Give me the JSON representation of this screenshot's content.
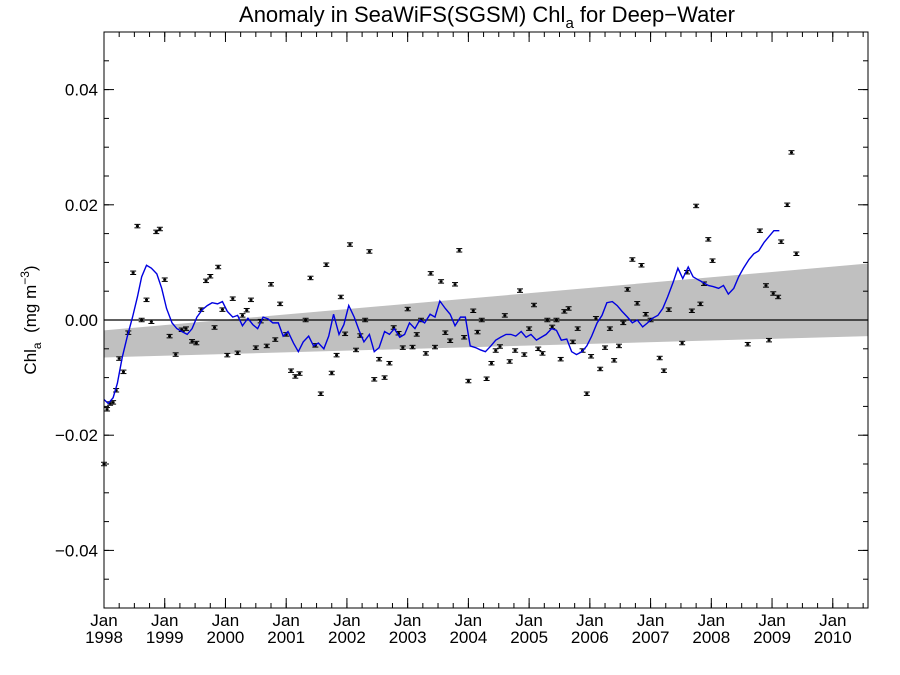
{
  "chart_data": {
    "type": "scatter",
    "title": {
      "main": "Anomaly in SeaWiFS(SGSM) Chl",
      "sub": "a",
      "rest": " for Deep−Water"
    },
    "ylabel": {
      "main": "Chl",
      "sub": "a",
      "unit_open": "  (mg m",
      "unit_exp": "−3",
      "unit_close": ")"
    },
    "x_range": [
      1998.0,
      2010.58
    ],
    "ylim": [
      -0.05,
      0.05
    ],
    "y_ticks": [
      {
        "value": 0.04,
        "label": "0.04"
      },
      {
        "value": 0.02,
        "label": "0.02"
      },
      {
        "value": 0.0,
        "label": "0.00"
      },
      {
        "value": -0.02,
        "label": "−0.02"
      },
      {
        "value": -0.04,
        "label": "−0.04"
      }
    ],
    "x_ticks": [
      {
        "value": 1998,
        "month": "Jan",
        "year": "1998"
      },
      {
        "value": 1999,
        "month": "Jan",
        "year": "1999"
      },
      {
        "value": 2000,
        "month": "Jan",
        "year": "2000"
      },
      {
        "value": 2001,
        "month": "Jan",
        "year": "2001"
      },
      {
        "value": 2002,
        "month": "Jan",
        "year": "2002"
      },
      {
        "value": 2003,
        "month": "Jan",
        "year": "2003"
      },
      {
        "value": 2004,
        "month": "Jan",
        "year": "2004"
      },
      {
        "value": 2005,
        "month": "Jan",
        "year": "2005"
      },
      {
        "value": 2006,
        "month": "Jan",
        "year": "2006"
      },
      {
        "value": 2007,
        "month": "Jan",
        "year": "2007"
      },
      {
        "value": 2008,
        "month": "Jan",
        "year": "2008"
      },
      {
        "value": 2009,
        "month": "Jan",
        "year": "2009"
      },
      {
        "value": 2010,
        "month": "Jan",
        "year": "2010"
      }
    ],
    "monthly_anomaly": {
      "error_half": 0.0003,
      "points": [
        [
          1998.0,
          -0.025
        ],
        [
          1998.05,
          -0.0155
        ],
        [
          1998.1,
          -0.0145
        ],
        [
          1998.15,
          -0.0143
        ],
        [
          1998.2,
          -0.0122
        ],
        [
          1998.25,
          -0.0067
        ],
        [
          1998.32,
          -0.009
        ],
        [
          1998.4,
          -0.0022
        ],
        [
          1998.48,
          0.0082
        ],
        [
          1998.55,
          0.0163
        ],
        [
          1998.62,
          0.0
        ],
        [
          1998.7,
          0.0035
        ],
        [
          1998.78,
          -0.0003
        ],
        [
          1998.86,
          0.0153
        ],
        [
          1998.92,
          0.0158
        ],
        [
          1999.0,
          0.007
        ],
        [
          1999.08,
          -0.0028
        ],
        [
          1999.18,
          -0.006
        ],
        [
          1999.28,
          -0.0017
        ],
        [
          1999.35,
          -0.0015
        ],
        [
          1999.45,
          -0.0037
        ],
        [
          1999.52,
          -0.004
        ],
        [
          1999.6,
          0.0018
        ],
        [
          1999.68,
          0.0068
        ],
        [
          1999.75,
          0.0076
        ],
        [
          1999.82,
          -0.0013
        ],
        [
          1999.88,
          0.0092
        ],
        [
          1999.95,
          0.0018
        ],
        [
          2000.03,
          -0.0061
        ],
        [
          2000.12,
          0.0037
        ],
        [
          2000.2,
          -0.0057
        ],
        [
          2000.28,
          0.0008
        ],
        [
          2000.35,
          0.0017
        ],
        [
          2000.42,
          0.0035
        ],
        [
          2000.5,
          -0.0048
        ],
        [
          2000.58,
          -0.0002
        ],
        [
          2000.68,
          -0.0045
        ],
        [
          2000.75,
          0.0062
        ],
        [
          2000.82,
          -0.0034
        ],
        [
          2000.9,
          0.0028
        ],
        [
          2001.0,
          -0.0025
        ],
        [
          2001.08,
          -0.0088
        ],
        [
          2001.15,
          -0.0098
        ],
        [
          2001.22,
          -0.0093
        ],
        [
          2001.32,
          0.0
        ],
        [
          2001.4,
          0.0073
        ],
        [
          2001.48,
          -0.0044
        ],
        [
          2001.57,
          -0.0128
        ],
        [
          2001.66,
          0.0096
        ],
        [
          2001.75,
          -0.0092
        ],
        [
          2001.83,
          -0.0061
        ],
        [
          2001.9,
          0.004
        ],
        [
          2001.97,
          -0.0024
        ],
        [
          2002.05,
          0.0131
        ],
        [
          2002.15,
          -0.0052
        ],
        [
          2002.22,
          -0.0027
        ],
        [
          2002.3,
          0.0
        ],
        [
          2002.37,
          0.0119
        ],
        [
          2002.45,
          -0.0103
        ],
        [
          2002.53,
          -0.0068
        ],
        [
          2002.62,
          -0.01
        ],
        [
          2002.7,
          -0.0075
        ],
        [
          2002.77,
          -0.0013
        ],
        [
          2002.85,
          -0.0023
        ],
        [
          2002.92,
          -0.0048
        ],
        [
          2003.0,
          0.0019
        ],
        [
          2003.08,
          -0.0047
        ],
        [
          2003.15,
          -0.0025
        ],
        [
          2003.22,
          0.0
        ],
        [
          2003.3,
          -0.0058
        ],
        [
          2003.38,
          0.0081
        ],
        [
          2003.45,
          -0.0047
        ],
        [
          2003.55,
          0.0067
        ],
        [
          2003.62,
          -0.0022
        ],
        [
          2003.7,
          -0.0036
        ],
        [
          2003.78,
          0.0062
        ],
        [
          2003.85,
          0.0121
        ],
        [
          2003.93,
          -0.003
        ],
        [
          2004.0,
          -0.0106
        ],
        [
          2004.08,
          0.0016
        ],
        [
          2004.15,
          -0.0021
        ],
        [
          2004.22,
          0.0
        ],
        [
          2004.3,
          -0.0102
        ],
        [
          2004.38,
          -0.0075
        ],
        [
          2004.45,
          -0.0053
        ],
        [
          2004.52,
          -0.0046
        ],
        [
          2004.6,
          0.0008
        ],
        [
          2004.68,
          -0.0072
        ],
        [
          2004.77,
          -0.0053
        ],
        [
          2004.85,
          0.0051
        ],
        [
          2004.92,
          -0.006
        ],
        [
          2005.0,
          -0.0015
        ],
        [
          2005.08,
          0.0026
        ],
        [
          2005.15,
          -0.005
        ],
        [
          2005.22,
          -0.0058
        ],
        [
          2005.3,
          0.0
        ],
        [
          2005.38,
          -0.0012
        ],
        [
          2005.45,
          0.0
        ],
        [
          2005.52,
          -0.0068
        ],
        [
          2005.58,
          0.0015
        ],
        [
          2005.65,
          0.002
        ],
        [
          2005.72,
          -0.0038
        ],
        [
          2005.8,
          -0.0015
        ],
        [
          2005.88,
          -0.0053
        ],
        [
          2005.95,
          -0.0128
        ],
        [
          2006.02,
          -0.0063
        ],
        [
          2006.1,
          0.0003
        ],
        [
          2006.17,
          -0.0085
        ],
        [
          2006.25,
          -0.0048
        ],
        [
          2006.33,
          -0.0015
        ],
        [
          2006.4,
          -0.007
        ],
        [
          2006.48,
          -0.0045
        ],
        [
          2006.55,
          -0.0005
        ],
        [
          2006.62,
          0.0053
        ],
        [
          2006.7,
          0.0105
        ],
        [
          2006.78,
          0.0029
        ],
        [
          2006.85,
          0.0095
        ],
        [
          2006.92,
          0.001
        ],
        [
          2007.0,
          0.0
        ],
        [
          2007.15,
          -0.0066
        ],
        [
          2007.22,
          -0.0088
        ],
        [
          2007.3,
          0.0018
        ],
        [
          2007.52,
          -0.004
        ],
        [
          2007.6,
          0.0083
        ],
        [
          2007.68,
          0.0016
        ],
        [
          2007.75,
          0.0198
        ],
        [
          2007.82,
          0.0028
        ],
        [
          2007.88,
          0.0063
        ],
        [
          2007.95,
          0.014
        ],
        [
          2008.02,
          0.0103
        ],
        [
          2008.6,
          -0.0042
        ],
        [
          2008.8,
          0.0155
        ],
        [
          2008.9,
          0.006
        ],
        [
          2008.95,
          -0.0035
        ],
        [
          2009.02,
          0.0046
        ],
        [
          2009.1,
          0.004
        ],
        [
          2009.15,
          0.0136
        ],
        [
          2009.25,
          0.02
        ],
        [
          2009.32,
          0.0291
        ],
        [
          2009.4,
          0.0115
        ]
      ]
    },
    "smoothed_series": {
      "color": "#0000e0",
      "points": [
        [
          1998.0,
          -0.0138
        ],
        [
          1998.07,
          -0.0145
        ],
        [
          1998.15,
          -0.0135
        ],
        [
          1998.22,
          -0.011
        ],
        [
          1998.3,
          -0.0065
        ],
        [
          1998.38,
          -0.003
        ],
        [
          1998.47,
          0.0005
        ],
        [
          1998.55,
          0.004
        ],
        [
          1998.62,
          0.0075
        ],
        [
          1998.7,
          0.0095
        ],
        [
          1998.78,
          0.009
        ],
        [
          1998.87,
          0.008
        ],
        [
          1998.95,
          0.0055
        ],
        [
          1999.03,
          0.002
        ],
        [
          1999.12,
          -0.0005
        ],
        [
          1999.2,
          -0.0015
        ],
        [
          1999.28,
          -0.002
        ],
        [
          1999.37,
          -0.0025
        ],
        [
          1999.45,
          -0.0015
        ],
        [
          1999.53,
          0.0005
        ],
        [
          1999.62,
          0.0018
        ],
        [
          1999.7,
          0.0025
        ],
        [
          1999.78,
          0.003
        ],
        [
          1999.87,
          0.0028
        ],
        [
          1999.95,
          0.0032
        ],
        [
          2000.03,
          0.0015
        ],
        [
          2000.12,
          0.0005
        ],
        [
          2000.2,
          0.0008
        ],
        [
          2000.28,
          -0.001
        ],
        [
          2000.37,
          0.0003
        ],
        [
          2000.45,
          -0.0008
        ],
        [
          2000.53,
          -0.0015
        ],
        [
          2000.62,
          0.0005
        ],
        [
          2000.7,
          0.0002
        ],
        [
          2000.78,
          -0.0005
        ],
        [
          2000.87,
          -0.0005
        ],
        [
          2000.95,
          -0.0028
        ],
        [
          2001.03,
          -0.002
        ],
        [
          2001.12,
          -0.004
        ],
        [
          2001.2,
          -0.0055
        ],
        [
          2001.28,
          -0.0038
        ],
        [
          2001.37,
          -0.0028
        ],
        [
          2001.45,
          -0.0045
        ],
        [
          2001.53,
          -0.004
        ],
        [
          2001.62,
          -0.005
        ],
        [
          2001.7,
          -0.0028
        ],
        [
          2001.78,
          0.001
        ],
        [
          2001.87,
          -0.0025
        ],
        [
          2001.95,
          -0.0008
        ],
        [
          2002.03,
          0.0025
        ],
        [
          2002.12,
          0.0005
        ],
        [
          2002.2,
          -0.0018
        ],
        [
          2002.28,
          -0.0038
        ],
        [
          2002.37,
          -0.0025
        ],
        [
          2002.45,
          -0.0055
        ],
        [
          2002.53,
          -0.0048
        ],
        [
          2002.62,
          -0.002
        ],
        [
          2002.7,
          -0.0025
        ],
        [
          2002.78,
          -0.0015
        ],
        [
          2002.87,
          -0.003
        ],
        [
          2002.95,
          -0.0025
        ],
        [
          2003.03,
          -0.0005
        ],
        [
          2003.12,
          -0.0015
        ],
        [
          2003.2,
          0.0
        ],
        [
          2003.28,
          -0.0005
        ],
        [
          2003.37,
          0.001
        ],
        [
          2003.45,
          0.0005
        ],
        [
          2003.53,
          0.0033
        ],
        [
          2003.62,
          0.002
        ],
        [
          2003.7,
          0.001
        ],
        [
          2003.78,
          -0.001
        ],
        [
          2003.87,
          0.0005
        ],
        [
          2003.95,
          0.0005
        ],
        [
          2004.03,
          -0.0045
        ],
        [
          2004.12,
          -0.0048
        ],
        [
          2004.2,
          -0.0052
        ],
        [
          2004.28,
          -0.0055
        ],
        [
          2004.37,
          -0.0045
        ],
        [
          2004.45,
          -0.0035
        ],
        [
          2004.53,
          -0.003
        ],
        [
          2004.62,
          -0.0025
        ],
        [
          2004.7,
          -0.0025
        ],
        [
          2004.78,
          -0.0028
        ],
        [
          2004.87,
          -0.002
        ],
        [
          2004.95,
          -0.003
        ],
        [
          2005.03,
          -0.0025
        ],
        [
          2005.12,
          -0.0035
        ],
        [
          2005.2,
          -0.003
        ],
        [
          2005.28,
          -0.0025
        ],
        [
          2005.37,
          -0.0015
        ],
        [
          2005.45,
          -0.0018
        ],
        [
          2005.53,
          -0.0035
        ],
        [
          2005.62,
          -0.0033
        ],
        [
          2005.7,
          -0.0055
        ],
        [
          2005.78,
          -0.006
        ],
        [
          2005.87,
          -0.0055
        ],
        [
          2005.95,
          -0.0045
        ],
        [
          2006.03,
          -0.0028
        ],
        [
          2006.12,
          -0.0005
        ],
        [
          2006.2,
          0.0008
        ],
        [
          2006.28,
          0.003
        ],
        [
          2006.37,
          0.0032
        ],
        [
          2006.45,
          0.0025
        ],
        [
          2006.53,
          0.0015
        ],
        [
          2006.62,
          0.0005
        ],
        [
          2006.7,
          -0.0005
        ],
        [
          2006.78,
          0.0
        ],
        [
          2006.87,
          -0.0012
        ],
        [
          2006.95,
          -0.0005
        ],
        [
          2007.03,
          0.0003
        ],
        [
          2007.12,
          0.0008
        ],
        [
          2007.2,
          0.002
        ],
        [
          2007.28,
          0.004
        ],
        [
          2007.37,
          0.0065
        ],
        [
          2007.45,
          0.009
        ],
        [
          2007.53,
          0.0072
        ],
        [
          2007.62,
          0.0092
        ],
        [
          2007.7,
          0.0075
        ],
        [
          2007.78,
          0.007
        ],
        [
          2007.87,
          0.0065
        ],
        [
          2007.95,
          0.006
        ],
        [
          2008.03,
          0.0058
        ],
        [
          2008.12,
          0.0055
        ],
        [
          2008.2,
          0.006
        ],
        [
          2008.28,
          0.0045
        ],
        [
          2008.37,
          0.0055
        ],
        [
          2008.45,
          0.0075
        ],
        [
          2008.53,
          0.009
        ],
        [
          2008.62,
          0.0105
        ],
        [
          2008.7,
          0.0115
        ],
        [
          2008.78,
          0.012
        ],
        [
          2008.87,
          0.0135
        ],
        [
          2008.95,
          0.0145
        ],
        [
          2009.03,
          0.0155
        ],
        [
          2009.12,
          0.0155
        ]
      ]
    },
    "trend_band": {
      "color": "#c0c0c0",
      "upper": [
        [
          1998.0,
          -0.0018
        ],
        [
          2010.58,
          0.0098
        ]
      ],
      "lower": [
        [
          1998.0,
          -0.0065
        ],
        [
          2010.58,
          -0.0028
        ]
      ]
    },
    "zero_line": 0.0
  }
}
